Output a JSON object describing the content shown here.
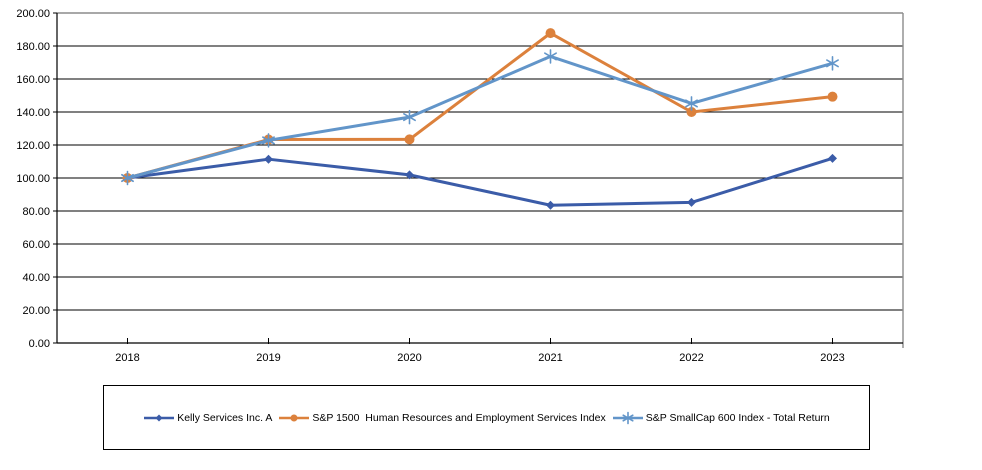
{
  "chart_data": {
    "type": "line",
    "title": "",
    "xlabel": "",
    "ylabel": "",
    "categories": [
      "2018",
      "2019",
      "2020",
      "2021",
      "2022",
      "2023"
    ],
    "series": [
      {
        "name": "Kelly Services Inc. A",
        "color": "#3B5CA8",
        "marker": "diamond",
        "values": [
          100.0,
          111.4,
          101.9,
          83.5,
          85.2,
          111.9
        ]
      },
      {
        "name": "S&P 1500  Human Resources and Employment Services Index",
        "color": "#DC813C",
        "marker": "circle",
        "values": [
          100.0,
          123.3,
          123.4,
          187.8,
          140.0,
          149.3
        ]
      },
      {
        "name": "S&P SmallCap 600 Index - Total Return",
        "color": "#6295C9",
        "marker": "asterisk",
        "values": [
          100.0,
          122.8,
          136.9,
          173.7,
          145.2,
          169.5
        ]
      }
    ],
    "ylim": [
      0,
      200
    ],
    "ystep": 20,
    "y_tick_labels": [
      "0.00",
      "20.00",
      "40.00",
      "60.00",
      "80.00",
      "100.00",
      "120.00",
      "140.00",
      "160.00",
      "180.00",
      "200.00"
    ],
    "grid": "horizontal",
    "gridline_color": "#000000",
    "axis_color": "#000000",
    "plot_border_color": "#8C8C8C",
    "legend_position": "bottom",
    "legend_border_color": "#000000"
  }
}
